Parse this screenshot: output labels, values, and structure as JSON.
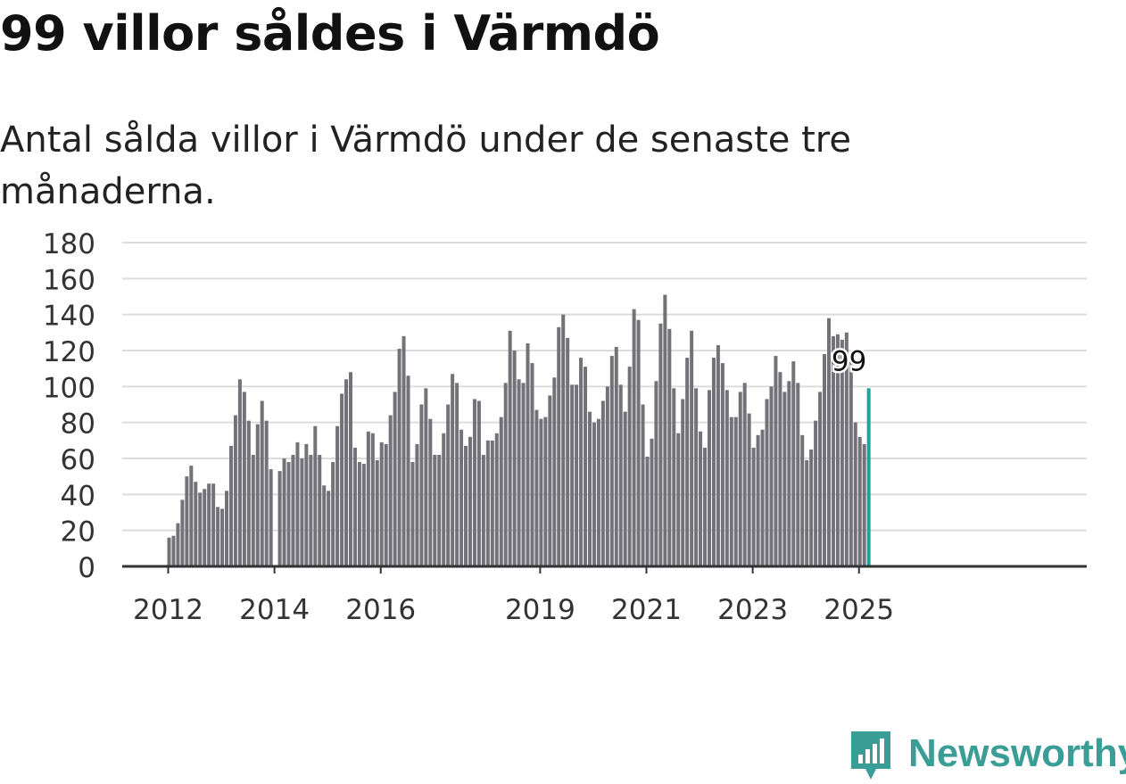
{
  "title": "99 villor såldes i Värmdö",
  "subtitle": "Antal sålda villor i Värmdö under de senaste tre månaderna.",
  "brand": {
    "name": "Newsworthy",
    "color": "#3a9e97"
  },
  "colors": {
    "bar": "#737278",
    "highlight": "#1ba39c",
    "grid": "#dcdcdc",
    "axis": "#333333"
  },
  "chart_data": {
    "type": "bar",
    "ylim": [
      0,
      180
    ],
    "yticks": [
      0,
      20,
      40,
      60,
      80,
      100,
      120,
      140,
      160,
      180
    ],
    "xticks": [
      "2012",
      "2014",
      "2016",
      "2019",
      "2021",
      "2023",
      "2025"
    ],
    "grid": true,
    "start": "2012-01",
    "values": [
      16,
      17,
      24,
      37,
      50,
      56,
      47,
      41,
      43,
      46,
      46,
      33,
      32,
      42,
      67,
      84,
      104,
      97,
      81,
      62,
      79,
      92,
      81,
      54,
      0,
      53,
      60,
      58,
      62,
      69,
      60,
      68,
      62,
      78,
      62,
      45,
      42,
      58,
      78,
      96,
      104,
      108,
      66,
      58,
      57,
      75,
      74,
      59,
      69,
      68,
      84,
      97,
      121,
      128,
      106,
      58,
      68,
      90,
      99,
      82,
      62,
      62,
      74,
      90,
      107,
      102,
      76,
      67,
      72,
      93,
      92,
      62,
      70,
      70,
      74,
      83,
      102,
      131,
      120,
      104,
      102,
      124,
      113,
      87,
      82,
      83,
      95,
      105,
      133,
      140,
      127,
      101,
      101,
      116,
      111,
      86,
      80,
      82,
      92,
      100,
      117,
      122,
      101,
      86,
      111,
      143,
      137,
      90,
      61,
      71,
      103,
      135,
      151,
      132,
      99,
      74,
      93,
      116,
      131,
      99,
      75,
      66,
      98,
      116,
      123,
      113,
      98,
      83,
      83,
      97,
      102,
      85,
      66,
      73,
      76,
      93,
      100,
      117,
      108,
      97,
      103,
      114,
      102,
      73,
      59,
      65,
      81,
      97,
      118,
      138,
      128,
      129,
      126,
      130,
      117,
      80,
      72,
      68,
      99
    ],
    "highlight_label": "99"
  }
}
